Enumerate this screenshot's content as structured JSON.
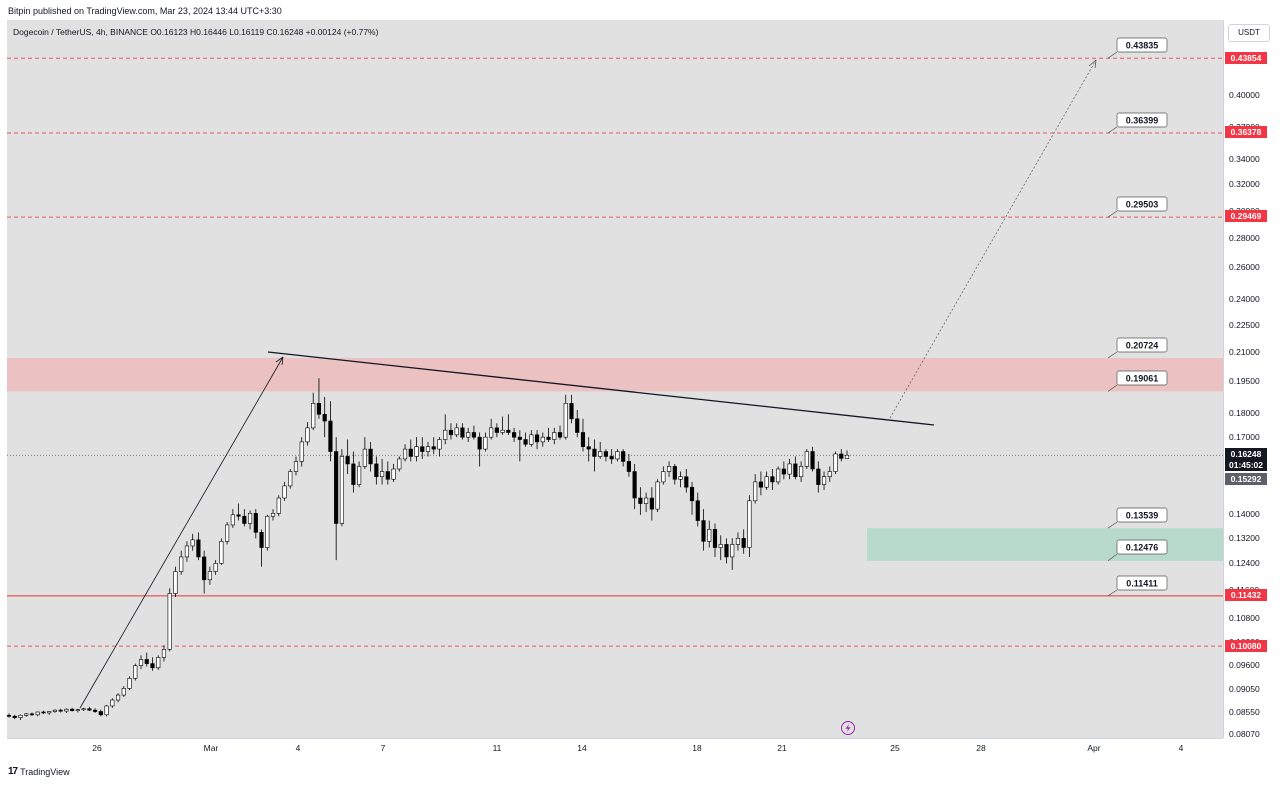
{
  "header": {
    "published_by": "Bitpin published on TradingView.com, Mar 23, 2024 13:44 UTC+3:30",
    "symbol_line": "Dogecoin / TetherUS, 4h, BINANCE  O0.16123  H0.16446  L0.16119  C0.16248  +0.00124 (+0.77%)"
  },
  "currency": "USDT",
  "footer": {
    "brand": "TradingView",
    "logo_mark": "17"
  },
  "colors": {
    "up": "#ffffff",
    "down": "#000000",
    "resistance_zone": "#f0b3b5",
    "support_zone": "#a8d7c6",
    "level_red": "#f23645",
    "support_line": "#e53935",
    "background": "#e1e1e1"
  },
  "icons": {
    "lightning": "lightning-icon"
  },
  "chart_data": {
    "type": "candlestick",
    "symbol": "Dogecoin / TetherUS",
    "timeframe": "4h",
    "exchange": "BINANCE",
    "ohlc": {
      "open": 0.16123,
      "high": 0.16446,
      "low": 0.16119,
      "close": 0.16248,
      "change": "+0.00124 (+0.77%)"
    },
    "y_ticks": [
      "0.40000",
      "0.37000",
      "0.34000",
      "0.32000",
      "0.30000",
      "0.28000",
      "0.26000",
      "0.24000",
      "0.22500",
      "0.21000",
      "0.19500",
      "0.18000",
      "0.17000",
      "0.15500",
      "0.14000",
      "0.13200",
      "0.12400",
      "0.11600",
      "0.10800",
      "0.10200",
      "0.09600",
      "0.09050",
      "0.08550",
      "0.08070"
    ],
    "x_ticks": [
      "26",
      "Mar",
      "4",
      "7",
      "11",
      "14",
      "18",
      "21",
      "25",
      "28",
      "Apr",
      "4"
    ],
    "axis_price_labels": [
      {
        "value": "0.43854",
        "type": "red"
      },
      {
        "value": "0.36378",
        "type": "red"
      },
      {
        "value": "0.29469",
        "type": "red"
      },
      {
        "value": "0.11432",
        "type": "red"
      },
      {
        "value": "0.10080",
        "type": "red"
      },
      {
        "value": "0.16248",
        "type": "dark"
      },
      {
        "value": "01:45:02",
        "type": "dark"
      },
      {
        "value": "0.15292",
        "type": "gray"
      }
    ],
    "target_callouts": [
      "0.43835",
      "0.36399",
      "0.29503",
      "0.20724",
      "0.19061",
      "0.13539",
      "0.12476",
      "0.11411"
    ],
    "zones": [
      {
        "name": "resistance",
        "low": 0.19061,
        "high": 0.20724
      },
      {
        "name": "support",
        "low": 0.12476,
        "high": 0.13539
      }
    ],
    "horizontal_levels": [
      0.43854,
      0.36378,
      0.29469,
      0.11432,
      0.1008
    ],
    "last_price": 0.16248,
    "candles": [
      [
        0.0848,
        0.0852,
        0.0843,
        0.0846
      ],
      [
        0.0846,
        0.0849,
        0.084,
        0.0843
      ],
      [
        0.0843,
        0.085,
        0.0838,
        0.0848
      ],
      [
        0.0848,
        0.0853,
        0.0845,
        0.0851
      ],
      [
        0.0851,
        0.0854,
        0.0847,
        0.0849
      ],
      [
        0.0849,
        0.0856,
        0.0846,
        0.0855
      ],
      [
        0.0855,
        0.0858,
        0.0851,
        0.0853
      ],
      [
        0.0853,
        0.0857,
        0.0849,
        0.0856
      ],
      [
        0.0856,
        0.0861,
        0.0853,
        0.0859
      ],
      [
        0.0859,
        0.0862,
        0.0854,
        0.0857
      ],
      [
        0.0857,
        0.0863,
        0.0853,
        0.0861
      ],
      [
        0.0861,
        0.0864,
        0.0856,
        0.0858
      ],
      [
        0.0858,
        0.0862,
        0.0854,
        0.086
      ],
      [
        0.086,
        0.0864,
        0.0857,
        0.0862
      ],
      [
        0.0862,
        0.0866,
        0.0857,
        0.0859
      ],
      [
        0.0859,
        0.0863,
        0.0853,
        0.0856
      ],
      [
        0.0856,
        0.086,
        0.0846,
        0.0849
      ],
      [
        0.0849,
        0.087,
        0.0846,
        0.0868
      ],
      [
        0.0868,
        0.0885,
        0.0864,
        0.0881
      ],
      [
        0.0881,
        0.0896,
        0.0876,
        0.0892
      ],
      [
        0.0892,
        0.0912,
        0.0888,
        0.0907
      ],
      [
        0.0907,
        0.0935,
        0.0903,
        0.093
      ],
      [
        0.093,
        0.0965,
        0.0925,
        0.096
      ],
      [
        0.096,
        0.0985,
        0.0952,
        0.0975
      ],
      [
        0.0975,
        0.0992,
        0.0958,
        0.0965
      ],
      [
        0.0965,
        0.098,
        0.0948,
        0.0955
      ],
      [
        0.0955,
        0.0985,
        0.095,
        0.098
      ],
      [
        0.098,
        0.101,
        0.097,
        0.1
      ],
      [
        0.1,
        0.1165,
        0.0995,
        0.115
      ],
      [
        0.115,
        0.123,
        0.114,
        0.1215
      ],
      [
        0.1215,
        0.128,
        0.1205,
        0.126
      ],
      [
        0.126,
        0.131,
        0.1245,
        0.1295
      ],
      [
        0.1295,
        0.1335,
        0.128,
        0.1315
      ],
      [
        0.1315,
        0.134,
        0.125,
        0.126
      ],
      [
        0.126,
        0.128,
        0.115,
        0.119
      ],
      [
        0.119,
        0.123,
        0.1175,
        0.1215
      ],
      [
        0.1215,
        0.125,
        0.1205,
        0.124
      ],
      [
        0.124,
        0.132,
        0.1235,
        0.131
      ],
      [
        0.131,
        0.1375,
        0.13,
        0.1365
      ],
      [
        0.1365,
        0.142,
        0.1355,
        0.14
      ],
      [
        0.14,
        0.144,
        0.138,
        0.1395
      ],
      [
        0.1395,
        0.142,
        0.136,
        0.137
      ],
      [
        0.137,
        0.1415,
        0.135,
        0.1405
      ],
      [
        0.1405,
        0.142,
        0.132,
        0.134
      ],
      [
        0.134,
        0.135,
        0.123,
        0.129
      ],
      [
        0.129,
        0.14,
        0.128,
        0.1395
      ],
      [
        0.1395,
        0.142,
        0.138,
        0.1405
      ],
      [
        0.1405,
        0.147,
        0.1395,
        0.146
      ],
      [
        0.146,
        0.152,
        0.145,
        0.1505
      ],
      [
        0.1505,
        0.157,
        0.1495,
        0.156
      ],
      [
        0.156,
        0.162,
        0.1545,
        0.16
      ],
      [
        0.16,
        0.17,
        0.158,
        0.168
      ],
      [
        0.168,
        0.1765,
        0.1665,
        0.174
      ],
      [
        0.174,
        0.19,
        0.173,
        0.185
      ],
      [
        0.185,
        0.197,
        0.178,
        0.18
      ],
      [
        0.18,
        0.188,
        0.17,
        0.177
      ],
      [
        0.177,
        0.186,
        0.16,
        0.164
      ],
      [
        0.164,
        0.17,
        0.125,
        0.137
      ],
      [
        0.137,
        0.165,
        0.136,
        0.162
      ],
      [
        0.162,
        0.169,
        0.155,
        0.159
      ],
      [
        0.159,
        0.164,
        0.148,
        0.151
      ],
      [
        0.151,
        0.16,
        0.15,
        0.158
      ],
      [
        0.158,
        0.17,
        0.157,
        0.165
      ],
      [
        0.165,
        0.168,
        0.156,
        0.159
      ],
      [
        0.159,
        0.162,
        0.151,
        0.154
      ],
      [
        0.154,
        0.161,
        0.151,
        0.156
      ],
      [
        0.156,
        0.16,
        0.151,
        0.153
      ],
      [
        0.153,
        0.159,
        0.152,
        0.157
      ],
      [
        0.157,
        0.162,
        0.156,
        0.161
      ],
      [
        0.161,
        0.167,
        0.16,
        0.165
      ],
      [
        0.165,
        0.169,
        0.16,
        0.162
      ],
      [
        0.162,
        0.17,
        0.16,
        0.166
      ],
      [
        0.166,
        0.17,
        0.161,
        0.164
      ],
      [
        0.164,
        0.168,
        0.162,
        0.166
      ],
      [
        0.166,
        0.17,
        0.163,
        0.165
      ],
      [
        0.165,
        0.17,
        0.162,
        0.169
      ],
      [
        0.169,
        0.18,
        0.167,
        0.173
      ],
      [
        0.173,
        0.176,
        0.169,
        0.171
      ],
      [
        0.171,
        0.176,
        0.17,
        0.174
      ],
      [
        0.174,
        0.176,
        0.169,
        0.17
      ],
      [
        0.17,
        0.174,
        0.168,
        0.172
      ],
      [
        0.172,
        0.175,
        0.169,
        0.17
      ],
      [
        0.17,
        0.172,
        0.158,
        0.165
      ],
      [
        0.165,
        0.172,
        0.164,
        0.17
      ],
      [
        0.17,
        0.178,
        0.169,
        0.174
      ],
      [
        0.174,
        0.176,
        0.17,
        0.172
      ],
      [
        0.172,
        0.179,
        0.171,
        0.173
      ],
      [
        0.173,
        0.18,
        0.171,
        0.172
      ],
      [
        0.172,
        0.174,
        0.168,
        0.17
      ],
      [
        0.17,
        0.173,
        0.16,
        0.169
      ],
      [
        0.169,
        0.172,
        0.166,
        0.167
      ],
      [
        0.167,
        0.173,
        0.166,
        0.171
      ],
      [
        0.171,
        0.173,
        0.165,
        0.168
      ],
      [
        0.168,
        0.172,
        0.166,
        0.17
      ],
      [
        0.17,
        0.174,
        0.168,
        0.169
      ],
      [
        0.169,
        0.174,
        0.167,
        0.172
      ],
      [
        0.172,
        0.175,
        0.169,
        0.17
      ],
      [
        0.17,
        0.189,
        0.169,
        0.185
      ],
      [
        0.185,
        0.189,
        0.176,
        0.178
      ],
      [
        0.178,
        0.182,
        0.17,
        0.172
      ],
      [
        0.172,
        0.178,
        0.164,
        0.166
      ],
      [
        0.166,
        0.17,
        0.16,
        0.165
      ],
      [
        0.165,
        0.169,
        0.156,
        0.162
      ],
      [
        0.162,
        0.168,
        0.161,
        0.164
      ],
      [
        0.164,
        0.165,
        0.16,
        0.162
      ],
      [
        0.162,
        0.165,
        0.159,
        0.161
      ],
      [
        0.161,
        0.165,
        0.16,
        0.164
      ],
      [
        0.164,
        0.165,
        0.158,
        0.16
      ],
      [
        0.16,
        0.163,
        0.154,
        0.156
      ],
      [
        0.156,
        0.159,
        0.142,
        0.146
      ],
      [
        0.146,
        0.15,
        0.14,
        0.144
      ],
      [
        0.144,
        0.148,
        0.141,
        0.146
      ],
      [
        0.146,
        0.15,
        0.138,
        0.142
      ],
      [
        0.142,
        0.153,
        0.141,
        0.152
      ],
      [
        0.152,
        0.158,
        0.151,
        0.156
      ],
      [
        0.156,
        0.16,
        0.154,
        0.158
      ],
      [
        0.158,
        0.159,
        0.151,
        0.153
      ],
      [
        0.153,
        0.156,
        0.15,
        0.154
      ],
      [
        0.154,
        0.157,
        0.148,
        0.15
      ],
      [
        0.15,
        0.152,
        0.14,
        0.145
      ],
      [
        0.145,
        0.148,
        0.136,
        0.138
      ],
      [
        0.138,
        0.142,
        0.128,
        0.131
      ],
      [
        0.131,
        0.138,
        0.129,
        0.135
      ],
      [
        0.135,
        0.137,
        0.126,
        0.129
      ],
      [
        0.129,
        0.133,
        0.125,
        0.13
      ],
      [
        0.13,
        0.132,
        0.124,
        0.126
      ],
      [
        0.126,
        0.132,
        0.122,
        0.13
      ],
      [
        0.13,
        0.134,
        0.128,
        0.132
      ],
      [
        0.132,
        0.135,
        0.127,
        0.129
      ],
      [
        0.129,
        0.147,
        0.126,
        0.145
      ],
      [
        0.145,
        0.155,
        0.144,
        0.152
      ],
      [
        0.152,
        0.156,
        0.147,
        0.15
      ],
      [
        0.15,
        0.156,
        0.149,
        0.154
      ],
      [
        0.154,
        0.157,
        0.149,
        0.152
      ],
      [
        0.152,
        0.158,
        0.151,
        0.157
      ],
      [
        0.157,
        0.16,
        0.153,
        0.155
      ],
      [
        0.155,
        0.161,
        0.153,
        0.159
      ],
      [
        0.159,
        0.162,
        0.153,
        0.154
      ],
      [
        0.154,
        0.16,
        0.152,
        0.158
      ],
      [
        0.158,
        0.165,
        0.157,
        0.164
      ],
      [
        0.164,
        0.166,
        0.156,
        0.157
      ],
      [
        0.157,
        0.16,
        0.148,
        0.151
      ],
      [
        0.151,
        0.156,
        0.149,
        0.154
      ],
      [
        0.154,
        0.158,
        0.152,
        0.156
      ],
      [
        0.156,
        0.164,
        0.155,
        0.163
      ],
      [
        0.163,
        0.165,
        0.16,
        0.1612
      ],
      [
        0.1612,
        0.1645,
        0.1611,
        0.1625
      ]
    ]
  }
}
